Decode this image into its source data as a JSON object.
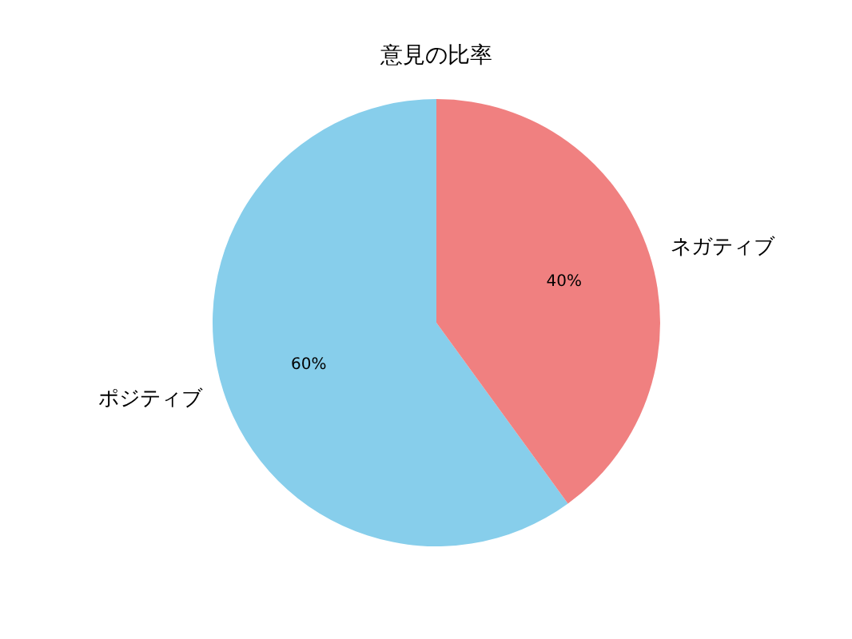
{
  "chart_data": {
    "type": "pie",
    "title": "意見の比率",
    "categories": [
      "ポジティブ",
      "ネガティブ"
    ],
    "values": [
      60,
      40
    ],
    "colors": [
      "#87ceeb",
      "#f08080"
    ],
    "value_labels": [
      "60%",
      "40%"
    ]
  }
}
